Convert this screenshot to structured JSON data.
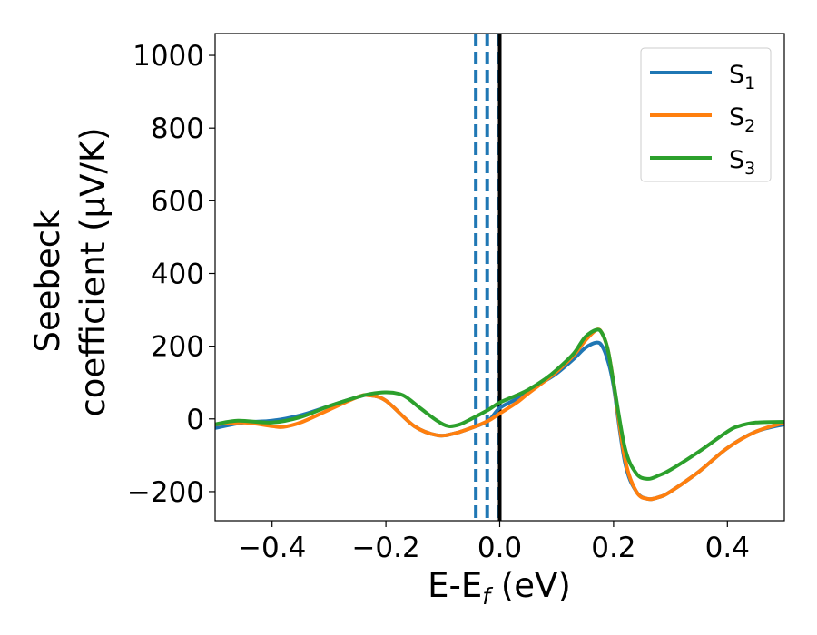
{
  "chart_data": {
    "type": "line",
    "title": "",
    "xlabel": "E-E$_f$ (eV)",
    "xlabel_main": "E-E",
    "xlabel_sub": "f",
    "xlabel_tail": " (eV)",
    "ylabel_line1": "Seebeck",
    "ylabel_line2": "coefficient  (μV/K)",
    "xlim": [
      -0.5,
      0.5
    ],
    "ylim": [
      -280,
      1060
    ],
    "xticks": [
      -0.4,
      -0.2,
      0.0,
      0.2,
      0.4
    ],
    "xtick_labels": [
      "−0.4",
      "−0.2",
      "0.0",
      "0.2",
      "0.4"
    ],
    "yticks": [
      -200,
      0,
      200,
      400,
      600,
      800,
      1000
    ],
    "ytick_labels": [
      "−200",
      "0",
      "200",
      "400",
      "600",
      "800",
      "1000"
    ],
    "legend_position": "top-right",
    "vlines": [
      {
        "x": -0.042,
        "style": "dashed",
        "color": "#1f77b4"
      },
      {
        "x": -0.022,
        "style": "dashed",
        "color": "#1f77b4"
      },
      {
        "x": -0.002,
        "style": "dashed",
        "color": "#1f77b4"
      },
      {
        "x": 0.0,
        "style": "solid",
        "color": "#000000"
      }
    ],
    "series": [
      {
        "name": "S",
        "subscript": "1",
        "color": "#1f77b4",
        "x": [
          -0.5,
          -0.45,
          -0.4,
          -0.35,
          -0.3,
          -0.25,
          -0.23,
          -0.2,
          -0.15,
          -0.11,
          -0.08,
          -0.05,
          -0.02,
          0.0,
          0.03,
          0.05,
          0.08,
          0.1,
          0.13,
          0.15,
          0.17,
          0.18,
          0.19,
          0.2,
          0.22,
          0.24,
          0.26,
          0.28,
          0.3,
          0.35,
          0.4,
          0.45,
          0.5
        ],
        "y": [
          -25,
          -10,
          -5,
          10,
          35,
          60,
          65,
          50,
          -20,
          -45,
          -40,
          -25,
          -5,
          30,
          55,
          75,
          105,
          125,
          165,
          195,
          210,
          200,
          160,
          90,
          -120,
          -200,
          -220,
          -215,
          -200,
          -145,
          -80,
          -35,
          -15
        ]
      },
      {
        "name": "S",
        "subscript": "2",
        "color": "#ff7f0e",
        "x": [
          -0.5,
          -0.45,
          -0.4,
          -0.38,
          -0.35,
          -0.3,
          -0.25,
          -0.23,
          -0.2,
          -0.15,
          -0.11,
          -0.08,
          -0.05,
          -0.02,
          0.0,
          0.03,
          0.05,
          0.08,
          0.1,
          0.13,
          0.15,
          0.17,
          0.18,
          0.19,
          0.2,
          0.22,
          0.24,
          0.26,
          0.28,
          0.3,
          0.35,
          0.4,
          0.45,
          0.5
        ],
        "y": [
          -15,
          -10,
          -20,
          -22,
          -10,
          25,
          60,
          65,
          50,
          -20,
          -45,
          -40,
          -25,
          -5,
          15,
          45,
          70,
          105,
          130,
          175,
          215,
          245,
          235,
          190,
          100,
          -110,
          -200,
          -220,
          -215,
          -200,
          -145,
          -80,
          -35,
          -10
        ]
      },
      {
        "name": "S",
        "subscript": "3",
        "color": "#2ca02c",
        "x": [
          -0.5,
          -0.46,
          -0.4,
          -0.35,
          -0.3,
          -0.25,
          -0.23,
          -0.2,
          -0.17,
          -0.14,
          -0.11,
          -0.09,
          -0.07,
          -0.05,
          -0.02,
          0.0,
          0.03,
          0.05,
          0.08,
          0.1,
          0.13,
          0.15,
          0.17,
          0.18,
          0.19,
          0.2,
          0.22,
          0.24,
          0.26,
          0.28,
          0.3,
          0.35,
          0.4,
          0.42,
          0.45,
          0.5
        ],
        "y": [
          -15,
          -5,
          -10,
          5,
          35,
          60,
          68,
          73,
          65,
          30,
          -5,
          -20,
          -15,
          0,
          25,
          45,
          65,
          80,
          110,
          135,
          180,
          225,
          245,
          235,
          190,
          100,
          -80,
          -150,
          -165,
          -155,
          -140,
          -90,
          -35,
          -20,
          -10,
          -8
        ]
      }
    ]
  }
}
